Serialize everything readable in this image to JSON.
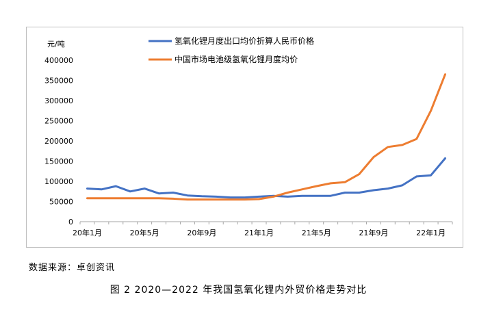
{
  "source_note": "数据来源：卓创资讯",
  "caption": "图 2  2020—2022 年我国氢氧化锂内外贸价格走势对比",
  "chart_data": {
    "type": "line",
    "ylabel": "元/吨",
    "ylim": [
      0,
      400000
    ],
    "yticks": [
      0,
      50000,
      100000,
      150000,
      200000,
      250000,
      300000,
      350000,
      400000
    ],
    "xticks": [
      "20年1月",
      "20年5月",
      "20年9月",
      "21年1月",
      "21年5月",
      "21年9月",
      "22年1月"
    ],
    "x": [
      "20年1月",
      "20年2月",
      "20年3月",
      "20年4月",
      "20年5月",
      "20年6月",
      "20年7月",
      "20年8月",
      "20年9月",
      "20年10月",
      "20年11月",
      "20年12月",
      "21年1月",
      "21年2月",
      "21年3月",
      "21年4月",
      "21年5月",
      "21年6月",
      "21年7月",
      "21年8月",
      "21年9月",
      "21年10月",
      "21年11月",
      "21年12月",
      "22年1月",
      "22年2月"
    ],
    "legend_position": "top",
    "grid": false,
    "series": [
      {
        "name": "氢氧化锂月度出口均价折算人民币价格",
        "color": "#4472C4",
        "values": [
          82000,
          80000,
          88000,
          75000,
          82000,
          70000,
          72000,
          65000,
          63000,
          62000,
          60000,
          60000,
          62000,
          64000,
          62000,
          64000,
          64000,
          64000,
          72000,
          72000,
          78000,
          82000,
          90000,
          112000,
          115000,
          157000
        ]
      },
      {
        "name": "中国市场电池级氢氧化锂月度均价",
        "color": "#ED7D31",
        "values": [
          58000,
          58000,
          58000,
          58000,
          58000,
          58000,
          57000,
          55000,
          55000,
          55000,
          55000,
          55000,
          56000,
          62000,
          72000,
          80000,
          88000,
          95000,
          98000,
          118000,
          160000,
          185000,
          190000,
          205000,
          275000,
          365000
        ]
      }
    ]
  }
}
